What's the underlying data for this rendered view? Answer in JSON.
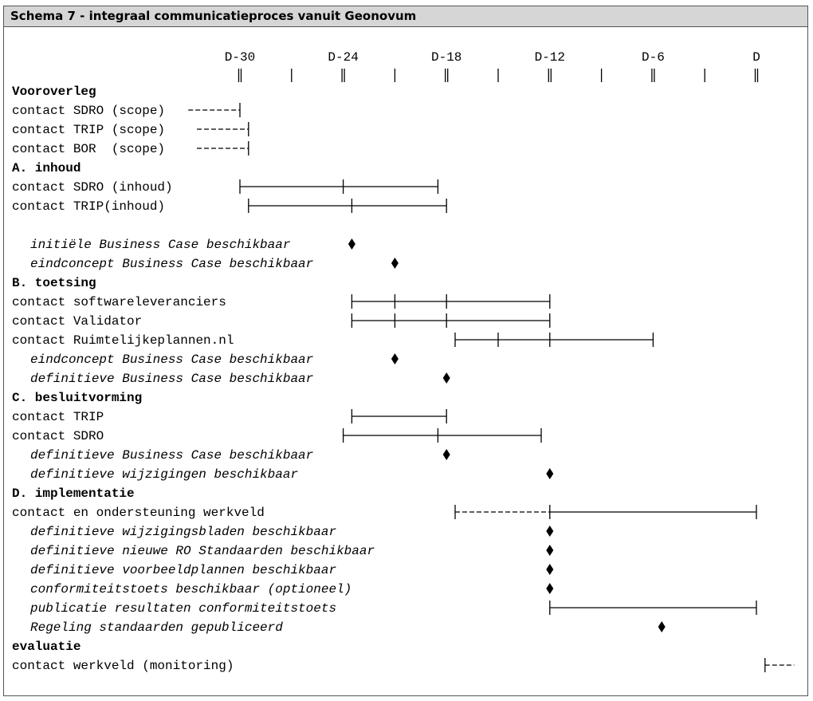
{
  "title": "Schema 7 - integraal communicatieproces vanuit Geonovum",
  "timeline": {
    "labels": [
      "D-30",
      "D-24",
      "D-18",
      "D-12",
      "D-6",
      "D"
    ]
  },
  "rows": [
    {
      "text": "Vooroverleg",
      "style": "bold"
    },
    {
      "text": "contact SDRO (scope)",
      "style": "normal"
    },
    {
      "text": "contact TRIP (scope)",
      "style": "normal"
    },
    {
      "text": "contact BOR  (scope)",
      "style": "normal"
    },
    {
      "text": "A. inhoud",
      "style": "bold"
    },
    {
      "text": "contact SDRO (inhoud)",
      "style": "normal"
    },
    {
      "text": "contact TRIP(inhoud)",
      "style": "normal"
    },
    {
      "text": "",
      "style": "normal"
    },
    {
      "text": "initiële Business Case beschikbaar",
      "style": "italic"
    },
    {
      "text": "eindconcept Business Case beschikbaar",
      "style": "italic"
    },
    {
      "text": "B. toetsing",
      "style": "bold"
    },
    {
      "text": "contact softwareleveranciers",
      "style": "normal"
    },
    {
      "text": "contact Validator",
      "style": "normal"
    },
    {
      "text": "contact Ruimtelijkeplannen.nl",
      "style": "normal"
    },
    {
      "text": "eindconcept Business Case beschikbaar",
      "style": "italic"
    },
    {
      "text": "definitieve Business Case beschikbaar",
      "style": "italic"
    },
    {
      "text": "C. besluitvorming",
      "style": "bold"
    },
    {
      "text": "contact TRIP",
      "style": "normal"
    },
    {
      "text": "contact SDRO",
      "style": "normal"
    },
    {
      "text": "definitieve Business Case beschikbaar",
      "style": "italic"
    },
    {
      "text": "definitieve wijzigingen beschikbaar",
      "style": "italic"
    },
    {
      "text": "D. implementatie",
      "style": "bold"
    },
    {
      "text": "contact en ondersteuning werkveld",
      "style": "normal"
    },
    {
      "text": "definitieve wijzigingsbladen beschikbaar",
      "style": "italic"
    },
    {
      "text": "definitieve nieuwe RO Standaarden beschikbaar",
      "style": "italic"
    },
    {
      "text": "definitieve voorbeeldplannen beschikbaar",
      "style": "italic"
    },
    {
      "text": "conformiteitstoets beschikbaar (optioneel)",
      "style": "italic"
    },
    {
      "text": "publicatie resultaten conformiteitstoets",
      "style": "italic"
    },
    {
      "text": "Regeling standaarden gepubliceerd",
      "style": "italic"
    },
    {
      "text": "evaluatie",
      "style": "bold"
    },
    {
      "text": "contact werkveld (monitoring)",
      "style": "normal"
    }
  ],
  "marks": {
    "bars": [
      {
        "row": 1,
        "end": -30,
        "dashed_from": -33
      },
      {
        "row": 2,
        "end": -29.5,
        "dashed_from": -32.5
      },
      {
        "row": 3,
        "end": -29.5,
        "dashed_from": -32.5
      },
      {
        "row": 5,
        "ticks": [
          -30,
          -24,
          -18.5
        ]
      },
      {
        "row": 6,
        "ticks": [
          -29.5,
          -23.5,
          -18
        ]
      },
      {
        "row": 11,
        "ticks": [
          -23.5,
          -21,
          -18,
          -12
        ]
      },
      {
        "row": 12,
        "ticks": [
          -23.5,
          -21,
          -18,
          -12
        ]
      },
      {
        "row": 13,
        "ticks": [
          -17.5,
          -15,
          -12,
          -6
        ]
      },
      {
        "row": 17,
        "ticks": [
          -23.5,
          -18
        ]
      },
      {
        "row": 18,
        "ticks": [
          -24,
          -18.5,
          -12.5
        ]
      },
      {
        "row": 22,
        "ticks": [
          -17.5,
          -12,
          0
        ],
        "dashed_segment": [
          -17.5,
          -12
        ]
      },
      {
        "row": 27,
        "ticks": [
          -12,
          0
        ]
      },
      {
        "row": 30,
        "start": 0.5,
        "dashed_to": 2.2
      }
    ],
    "diamonds": [
      {
        "row": 8,
        "at": -23.5
      },
      {
        "row": 9,
        "at": -21
      },
      {
        "row": 14,
        "at": -21
      },
      {
        "row": 15,
        "at": -18
      },
      {
        "row": 19,
        "at": -18
      },
      {
        "row": 20,
        "at": -12
      },
      {
        "row": 23,
        "at": -12
      },
      {
        "row": 24,
        "at": -12
      },
      {
        "row": 25,
        "at": -12
      },
      {
        "row": 26,
        "at": -12
      },
      {
        "row": 28,
        "at": -5.5
      }
    ]
  }
}
